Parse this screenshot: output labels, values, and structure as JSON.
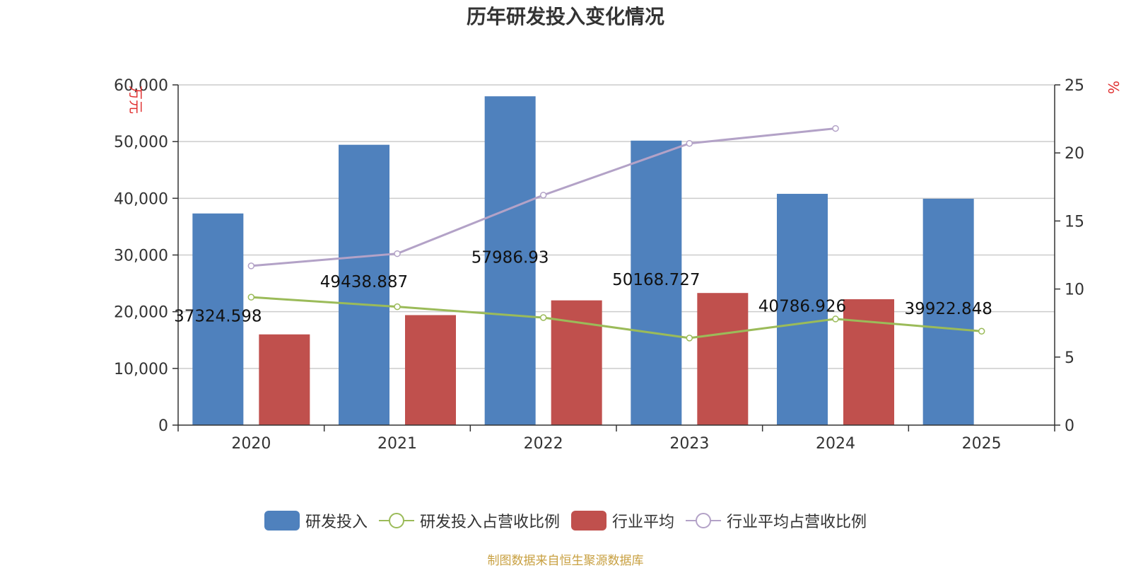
{
  "chart_data": {
    "type": "bar",
    "title": "历年研发投入变化情况",
    "categories": [
      "2020",
      "2021",
      "2022",
      "2023",
      "2024",
      "2025"
    ],
    "y_left": {
      "label": "万元",
      "range": [
        0,
        60000
      ],
      "ticks": [
        "0",
        "10,000",
        "20,000",
        "30,000",
        "40,000",
        "50,000",
        "60,000"
      ]
    },
    "y_right": {
      "label": "%",
      "range": [
        0,
        25
      ],
      "ticks": [
        "0",
        "5",
        "10",
        "15",
        "20",
        "25"
      ]
    },
    "grid": true,
    "legend_position": "bottom-center",
    "series": [
      {
        "name": "研发投入",
        "type": "bar",
        "axis": "left",
        "color": "#4f81bd",
        "values": [
          37324.598,
          49438.887,
          57986.93,
          50168.727,
          40786.926,
          39922.848
        ],
        "labels": [
          "37324.598",
          "49438.887",
          "57986.93",
          "50168.727",
          "40786.926",
          "39922.848"
        ]
      },
      {
        "name": "研发投入占营收比例",
        "type": "line",
        "axis": "right",
        "color": "#9bbb59",
        "values": [
          9.4,
          8.7,
          7.9,
          6.4,
          7.8,
          6.9
        ]
      },
      {
        "name": "行业平均",
        "type": "bar",
        "axis": "left",
        "color": "#c0504d",
        "values": [
          16000,
          19400,
          22000,
          23300,
          22200,
          null
        ]
      },
      {
        "name": "行业平均占营收比例",
        "type": "line",
        "axis": "right",
        "color": "#b3a2c7",
        "values": [
          11.7,
          12.6,
          16.9,
          20.7,
          21.8,
          null
        ]
      }
    ]
  },
  "source_note": "制图数据来自恒生聚源数据库"
}
